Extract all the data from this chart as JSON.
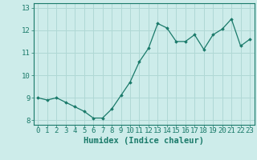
{
  "x": [
    0,
    1,
    2,
    3,
    4,
    5,
    6,
    7,
    8,
    9,
    10,
    11,
    12,
    13,
    14,
    15,
    16,
    17,
    18,
    19,
    20,
    21,
    22,
    23
  ],
  "y": [
    9.0,
    8.9,
    9.0,
    8.8,
    8.6,
    8.4,
    8.1,
    8.1,
    8.5,
    9.1,
    9.7,
    10.6,
    11.2,
    12.3,
    12.1,
    11.5,
    11.5,
    11.8,
    11.15,
    11.8,
    12.05,
    12.5,
    11.3,
    11.6
  ],
  "line_color": "#1a7a6a",
  "marker": "D",
  "marker_size": 1.8,
  "bg_color": "#cdecea",
  "grid_color": "#b0d8d5",
  "axis_color": "#1a7a6a",
  "xlabel": "Humidex (Indice chaleur)",
  "xlim": [
    -0.5,
    23.5
  ],
  "ylim": [
    7.8,
    13.2
  ],
  "yticks": [
    8,
    9,
    10,
    11,
    12,
    13
  ],
  "xtick_labels": [
    "0",
    "1",
    "2",
    "3",
    "4",
    "5",
    "6",
    "7",
    "8",
    "9",
    "10",
    "11",
    "12",
    "13",
    "14",
    "15",
    "16",
    "17",
    "18",
    "19",
    "20",
    "21",
    "22",
    "23"
  ],
  "xlabel_fontsize": 7.5,
  "tick_fontsize": 6.5
}
